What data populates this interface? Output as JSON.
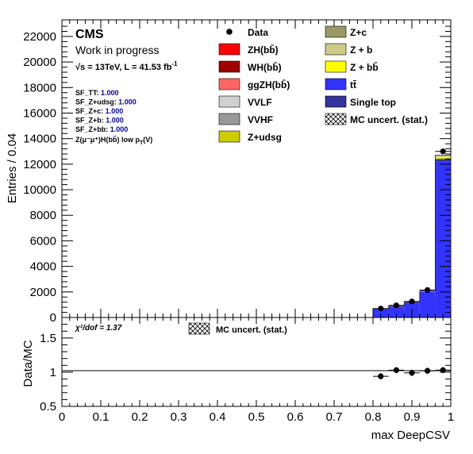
{
  "header": {
    "experiment": "CMS",
    "status": "Work in progress",
    "lumi": "√s = 13TeV, L = 41.53 fb",
    "lumi_sup": "-1"
  },
  "scale_factors": [
    {
      "label": "SF_TT:",
      "value": "1.000"
    },
    {
      "label": "SF_Z+udsg:",
      "value": "1.000"
    },
    {
      "label": "SF_Z+c:",
      "value": "1.000"
    },
    {
      "label": "SF_Z+b:",
      "value": "1.000"
    },
    {
      "label": "SF_Z+bb:",
      "value": "1.000"
    }
  ],
  "region": "Z(μ⁻μ⁺)H(bb̄) low p",
  "region_sub": "T",
  "region_tail": "(V)",
  "legend_left": [
    {
      "label": "Data",
      "color": "#000000",
      "kind": "marker"
    },
    {
      "label": "ZH(bb̄)",
      "color": "#ff0000",
      "kind": "box"
    },
    {
      "label": "WH(bb̄)",
      "color": "#a00000",
      "kind": "box"
    },
    {
      "label": "ggZH(bb̄)",
      "color": "#ff6666",
      "kind": "box"
    },
    {
      "label": "VVLF",
      "color": "#d0d0d0",
      "kind": "box"
    },
    {
      "label": "VVHF",
      "color": "#999999",
      "kind": "box"
    },
    {
      "label": "Z+udsg",
      "color": "#cccc00",
      "kind": "box"
    }
  ],
  "legend_right": [
    {
      "label": "Z+c",
      "color": "#999966",
      "kind": "box"
    },
    {
      "label": "Z + b",
      "color": "#cccc88",
      "kind": "box"
    },
    {
      "label": "Z + bb̄",
      "color": "#ffff00",
      "kind": "box"
    },
    {
      "label": "tt̄",
      "color": "#3333ff",
      "kind": "box"
    },
    {
      "label": "Single top",
      "color": "#333399",
      "kind": "box"
    },
    {
      "label": "MC uncert. (stat.)",
      "color": "#000000",
      "kind": "hatch"
    }
  ],
  "ratio_panel": {
    "chi2_label": "χ²/dof = 1.37",
    "legend_label": "MC uncert. (stat.)",
    "ylabel": "Data/MC",
    "yticks": [
      "0.5",
      "1",
      "1.5"
    ]
  },
  "chart_data": {
    "type": "bar",
    "xlabel": "max DeepCSV",
    "ylabel": "Entries / 0.04",
    "xlim": [
      0,
      1
    ],
    "ylim": [
      0,
      23300
    ],
    "xticks": [
      "0",
      "0.1",
      "0.2",
      "0.3",
      "0.4",
      "0.5",
      "0.6",
      "0.7",
      "0.8",
      "0.9",
      "1"
    ],
    "yticks": [
      "0",
      "2000",
      "4000",
      "6000",
      "8000",
      "10000",
      "12000",
      "14000",
      "16000",
      "18000",
      "20000",
      "22000"
    ],
    "bin_width": 0.04,
    "bins_low_edge": [
      0.8,
      0.84,
      0.88,
      0.92,
      0.96
    ],
    "series": [
      {
        "name": "tt̄",
        "color": "#3333ff",
        "values": [
          650,
          850,
          1150,
          2000,
          12200
        ]
      },
      {
        "name": "Single top",
        "color": "#333399",
        "values": [
          20,
          25,
          30,
          40,
          200
        ]
      },
      {
        "name": "Z+udsg",
        "color": "#cccc00",
        "values": [
          10,
          10,
          10,
          10,
          100
        ]
      },
      {
        "name": "Z + bb̄",
        "color": "#ffff00",
        "values": [
          0,
          0,
          0,
          10,
          80
        ]
      },
      {
        "name": "Z + b",
        "color": "#cccc88",
        "values": [
          0,
          0,
          0,
          5,
          70
        ]
      },
      {
        "name": "Z+c",
        "color": "#999966",
        "values": [
          0,
          0,
          0,
          5,
          50
        ]
      }
    ],
    "data_points": {
      "name": "Data",
      "x": [
        0.82,
        0.86,
        0.9,
        0.94,
        0.98
      ],
      "y": [
        700,
        950,
        1250,
        2150,
        13000
      ],
      "err": [
        30,
        35,
        40,
        50,
        115
      ]
    },
    "ratio": {
      "x": [
        0.82,
        0.86,
        0.9,
        0.94,
        0.98
      ],
      "y": [
        0.94,
        1.03,
        0.99,
        1.02,
        1.03
      ],
      "ylim": [
        0.5,
        1.8
      ]
    }
  }
}
